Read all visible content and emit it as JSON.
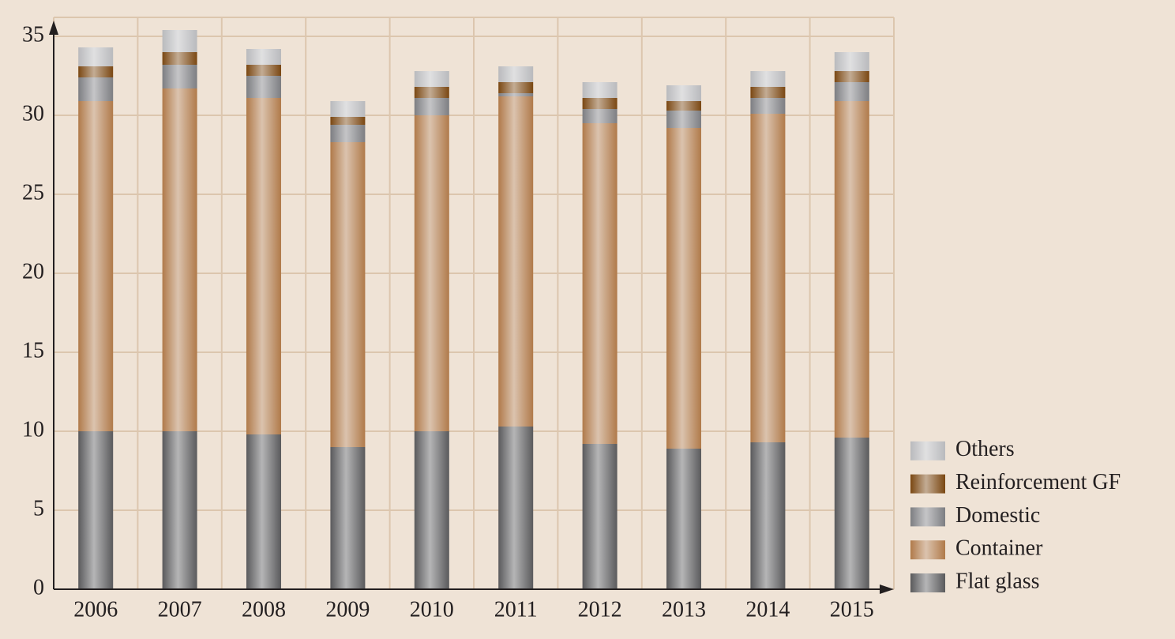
{
  "chart_data": {
    "type": "stacked-bar",
    "categories": [
      "2006",
      "2007",
      "2008",
      "2009",
      "2010",
      "2011",
      "2012",
      "2013",
      "2014",
      "2015"
    ],
    "series": [
      {
        "name": "Flat glass",
        "color": "#5a5a5c",
        "values": [
          10.0,
          10.0,
          9.8,
          9.0,
          10.0,
          10.3,
          9.2,
          8.9,
          9.3,
          9.6
        ]
      },
      {
        "name": "Container",
        "color": "#b07a4a",
        "values": [
          20.9,
          21.7,
          21.3,
          19.3,
          20.0,
          20.9,
          20.3,
          20.3,
          20.8,
          21.3
        ]
      },
      {
        "name": "Domestic",
        "color": "#7d7e82",
        "values": [
          1.5,
          1.5,
          1.4,
          1.1,
          1.1,
          0.2,
          0.9,
          1.1,
          1.0,
          1.2
        ]
      },
      {
        "name": "Reinforcement GF",
        "color": "#7a4712",
        "values": [
          0.7,
          0.8,
          0.7,
          0.5,
          0.7,
          0.7,
          0.7,
          0.6,
          0.7,
          0.7
        ]
      },
      {
        "name": "Others",
        "color": "#b9babd",
        "values": [
          1.2,
          1.4,
          1.0,
          1.0,
          1.0,
          1.0,
          1.0,
          1.0,
          1.0,
          1.2
        ]
      }
    ],
    "ylim": [
      0,
      35
    ],
    "yticks": [
      0,
      5,
      10,
      15,
      20,
      25,
      30,
      35
    ],
    "grid": true,
    "legend": "lower right"
  }
}
